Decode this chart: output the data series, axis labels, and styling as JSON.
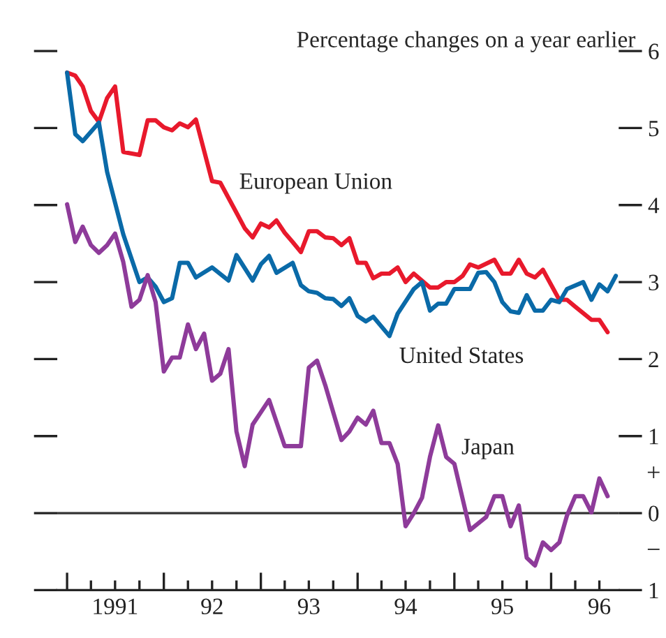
{
  "chart_data": {
    "type": "line",
    "title": "Percentage changes on a year earlier",
    "series": [
      {
        "name": "European Union",
        "color": "#e8192c",
        "x": [
          "1991-01",
          "1991-02",
          "1991-03",
          "1991-04",
          "1991-05",
          "1991-06",
          "1991-07",
          "1991-08",
          "1991-10",
          "1991-11",
          "1991-12",
          "1992-01",
          "1992-02",
          "1992-03",
          "1992-04",
          "1992-05",
          "1992-07",
          "1992-08",
          "1992-10",
          "1992-11",
          "1992-12",
          "1993-01",
          "1993-02",
          "1993-03",
          "1993-04",
          "1993-05",
          "1993-06",
          "1993-07",
          "1993-08",
          "1993-09",
          "1993-10",
          "1993-11",
          "1993-12",
          "1994-01",
          "1994-02",
          "1994-03",
          "1994-04",
          "1994-05",
          "1994-06",
          "1994-07",
          "1994-08",
          "1994-10",
          "1994-11",
          "1994-12",
          "1995-01",
          "1995-02",
          "1995-03",
          "1995-04",
          "1995-06",
          "1995-07",
          "1995-08",
          "1995-09",
          "1995-10",
          "1995-11",
          "1995-12",
          "1996-02",
          "1996-03",
          "1996-04",
          "1996-06",
          "1996-07",
          "1996-08"
        ],
        "values": [
          5.72,
          5.68,
          5.54,
          5.22,
          5.08,
          5.39,
          5.54,
          4.69,
          4.65,
          5.1,
          5.1,
          5.01,
          4.97,
          5.06,
          5.01,
          5.11,
          4.31,
          4.29,
          3.9,
          3.7,
          3.58,
          3.76,
          3.71,
          3.8,
          3.64,
          3.52,
          3.39,
          3.66,
          3.66,
          3.58,
          3.57,
          3.48,
          3.57,
          3.25,
          3.25,
          3.05,
          3.11,
          3.11,
          3.19,
          3.0,
          3.11,
          2.93,
          2.93,
          3.0,
          3.0,
          3.08,
          3.23,
          3.19,
          3.29,
          3.11,
          3.11,
          3.29,
          3.11,
          3.06,
          3.16,
          2.77,
          2.77,
          2.68,
          2.51,
          2.51,
          2.35
        ]
      },
      {
        "name": "United States",
        "color": "#0a6aa8",
        "x": [
          "1991-01",
          "1991-02",
          "1991-03",
          "1991-05",
          "1991-06",
          "1991-08",
          "1991-10",
          "1991-11",
          "1991-12",
          "1992-01",
          "1992-02",
          "1992-03",
          "1992-04",
          "1992-05",
          "1992-07",
          "1992-09",
          "1992-10",
          "1992-12",
          "1993-01",
          "1993-02",
          "1993-03",
          "1993-05",
          "1993-06",
          "1993-07",
          "1993-08",
          "1993-09",
          "1993-10",
          "1993-11",
          "1993-12",
          "1994-01",
          "1994-02",
          "1994-03",
          "1994-05",
          "1994-06",
          "1994-08",
          "1994-09",
          "1994-10",
          "1994-11",
          "1994-12",
          "1995-01",
          "1995-03",
          "1995-04",
          "1995-05",
          "1995-06",
          "1995-07",
          "1995-08",
          "1995-09",
          "1995-10",
          "1995-11",
          "1995-12",
          "1996-01",
          "1996-02",
          "1996-03",
          "1996-05",
          "1996-06",
          "1996-07",
          "1996-08",
          "1996-09"
        ],
        "values": [
          5.72,
          4.92,
          4.83,
          5.07,
          4.43,
          3.62,
          3.0,
          3.06,
          2.94,
          2.74,
          2.79,
          3.25,
          3.25,
          3.06,
          3.19,
          3.02,
          3.35,
          3.02,
          3.23,
          3.34,
          3.12,
          3.25,
          2.96,
          2.88,
          2.86,
          2.79,
          2.78,
          2.69,
          2.79,
          2.56,
          2.49,
          2.55,
          2.3,
          2.59,
          2.91,
          3.0,
          2.63,
          2.72,
          2.72,
          2.91,
          2.91,
          3.12,
          3.13,
          3.0,
          2.74,
          2.62,
          2.6,
          2.83,
          2.63,
          2.63,
          2.77,
          2.74,
          2.91,
          3.0,
          2.77,
          2.97,
          2.88,
          3.08
        ]
      },
      {
        "name": "Japan",
        "color": "#8e3b9a",
        "x": [
          "1991-01",
          "1991-02",
          "1991-03",
          "1991-04",
          "1991-05",
          "1991-06",
          "1991-07",
          "1991-08",
          "1991-09",
          "1991-10",
          "1991-11",
          "1991-12",
          "1992-01",
          "1992-02",
          "1992-03",
          "1992-04",
          "1992-05",
          "1992-06",
          "1992-07",
          "1992-08",
          "1992-09",
          "1992-10",
          "1992-11",
          "1992-12",
          "1993-01",
          "1993-02",
          "1993-04",
          "1993-06",
          "1993-07",
          "1993-08",
          "1993-09",
          "1993-10",
          "1993-11",
          "1993-12",
          "1994-01",
          "1994-02",
          "1994-03",
          "1994-04",
          "1994-05",
          "1994-06",
          "1994-07",
          "1994-08",
          "1994-09",
          "1994-10",
          "1994-11",
          "1994-12",
          "1995-01",
          "1995-03",
          "1995-05",
          "1995-06",
          "1995-07",
          "1995-08",
          "1995-09",
          "1995-10",
          "1995-11",
          "1995-12",
          "1996-01",
          "1996-02",
          "1996-03",
          "1996-04",
          "1996-05",
          "1996-06",
          "1996-07",
          "1996-08"
        ],
        "values": [
          4.01,
          3.52,
          3.72,
          3.48,
          3.38,
          3.48,
          3.63,
          3.26,
          2.68,
          2.77,
          3.09,
          2.74,
          1.84,
          2.02,
          2.02,
          2.45,
          2.13,
          2.33,
          1.72,
          1.81,
          2.13,
          1.06,
          0.61,
          1.15,
          1.31,
          1.47,
          0.87,
          0.87,
          1.89,
          1.98,
          1.66,
          1.31,
          0.95,
          1.06,
          1.24,
          1.15,
          1.33,
          0.91,
          0.91,
          0.64,
          -0.17,
          0.0,
          0.2,
          0.73,
          1.14,
          0.73,
          0.64,
          -0.22,
          -0.05,
          0.22,
          0.22,
          -0.17,
          0.1,
          -0.58,
          -0.68,
          -0.38,
          -0.48,
          -0.38,
          -0.03,
          0.22,
          0.22,
          0.01,
          0.45,
          0.22
        ]
      }
    ],
    "annotations": [
      "+",
      "−"
    ],
    "ref_lines": [
      {
        "axis": "y",
        "value": 0,
        "color": "#333333"
      }
    ],
    "xlim": [
      "1990-11-25",
      "1996-09-12"
    ],
    "xticks": [
      {
        "value": "1991",
        "label": null
      },
      {
        "value": "1991-04",
        "label": null
      },
      {
        "value": "1991-07",
        "label": "1991"
      },
      {
        "value": "1991-10",
        "label": null
      },
      {
        "value": "1992",
        "label": null
      },
      {
        "value": "1992-04",
        "label": null
      },
      {
        "value": "1992-07",
        "label": "92"
      },
      {
        "value": "1992-10",
        "label": null
      },
      {
        "value": "1993",
        "label": null
      },
      {
        "value": "1993-04",
        "label": null
      },
      {
        "value": "1993-07",
        "label": "93"
      },
      {
        "value": "1993-10",
        "label": null
      },
      {
        "value": "1994",
        "label": null
      },
      {
        "value": "1994-04",
        "label": null
      },
      {
        "value": "1994-07",
        "label": "94"
      },
      {
        "value": "1994-10",
        "label": null
      },
      {
        "value": "1995",
        "label": null
      },
      {
        "value": "1995-04",
        "label": null
      },
      {
        "value": "1995-07",
        "label": "95"
      },
      {
        "value": "1995-10",
        "label": null
      },
      {
        "value": "1996",
        "label": null
      },
      {
        "value": "1996-04",
        "label": null
      },
      {
        "value": "1996-07",
        "label": "96"
      }
    ],
    "ylim": [
      -1,
      6
    ],
    "yticks": [
      {
        "value": -1,
        "label": "1"
      },
      0,
      1,
      2,
      3,
      4,
      5,
      6
    ],
    "grid": false,
    "legend": false
  }
}
